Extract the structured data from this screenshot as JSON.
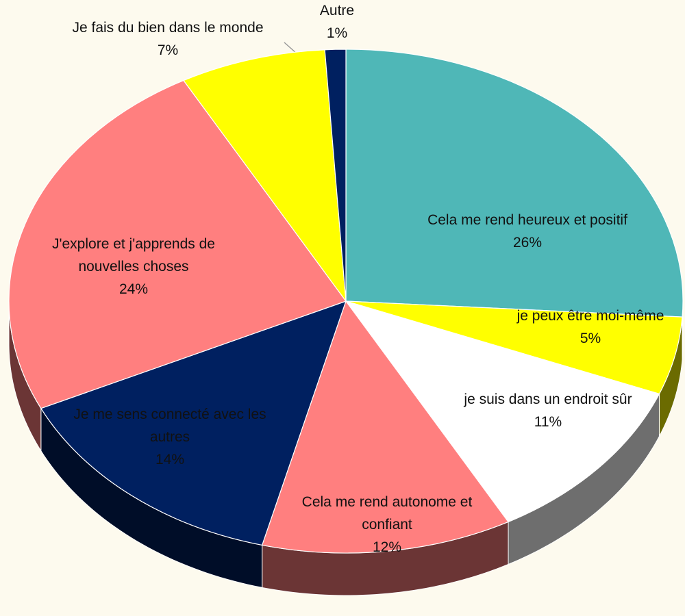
{
  "chart_data": {
    "type": "pie",
    "categories": [
      "Cela me rend heureux et positif",
      "je peux être moi-même",
      "je suis dans un endroit sûr",
      "Cela me rend autonome et confiant",
      "Je me sens connecté avec les autres",
      "J'explore et j'apprends de nouvelles choses",
      "Je fais du bien dans le monde",
      "Autre"
    ],
    "values": [
      26,
      5,
      11,
      12,
      14,
      24,
      7,
      1
    ],
    "value_labels": [
      "26%",
      "5%",
      "11%",
      "12%",
      "14%",
      "24%",
      "7%",
      "1%"
    ],
    "colors": [
      "#4fb7b7",
      "#ffff00",
      "#ffffff",
      "#ff7f7f",
      "#002060",
      "#ff7f7f",
      "#ffff00",
      "#002060"
    ]
  }
}
